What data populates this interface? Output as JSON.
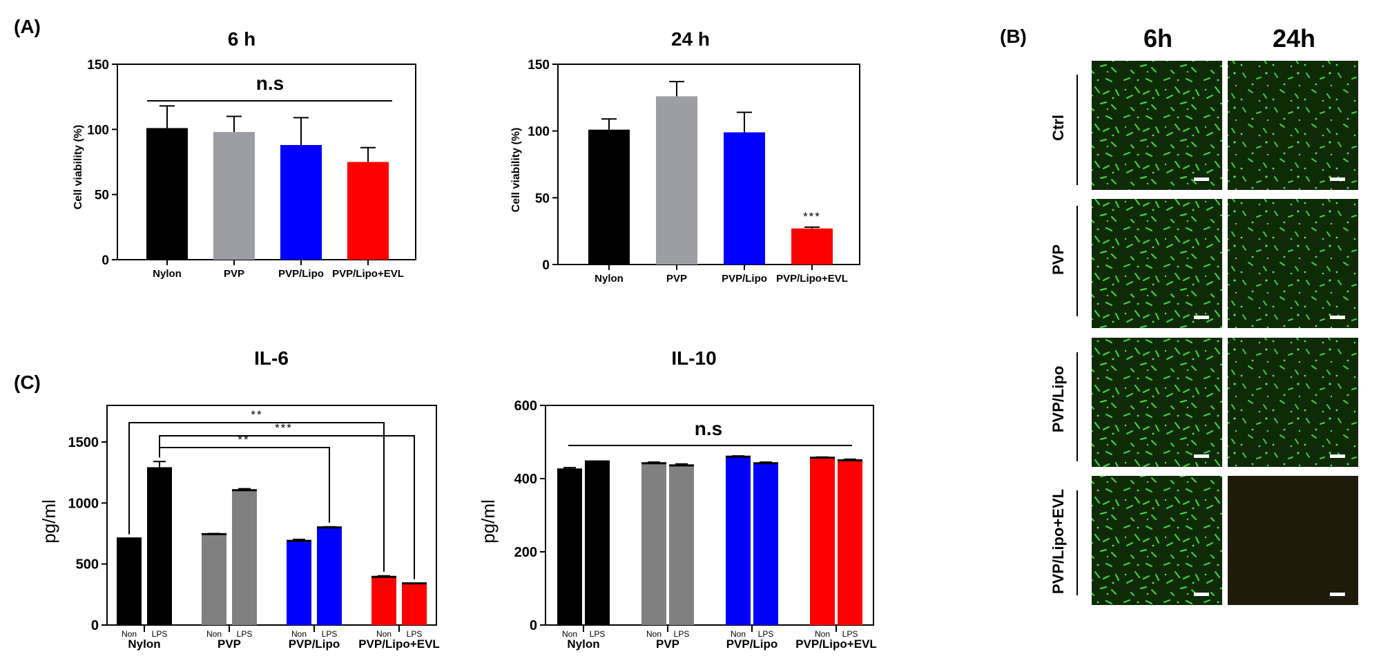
{
  "panels": {
    "A": "(A)",
    "B": "(B)",
    "C": "(C)"
  },
  "colors": {
    "black": "#000000",
    "lightgray": "#9d9ea3",
    "gray": "#808080",
    "blue": "#0000ff",
    "red": "#ff0000",
    "tissue": "#113300",
    "cell": "#39c53a",
    "dark": "#1f1a0a"
  },
  "microscopy": {
    "col_headers": [
      "6h",
      "24h"
    ],
    "rows": [
      "Ctrl",
      "PVP",
      "PVP/Lipo",
      "PVP/Lipo+EVL"
    ]
  },
  "chart_data": [
    {
      "id": "via6",
      "type": "bar",
      "title": "6 h",
      "ylabel": "Cell viability (%)",
      "xlabel": "",
      "ylim": [
        0,
        150
      ],
      "yticks": [
        0,
        50,
        100,
        150
      ],
      "categories": [
        "Nylon",
        "PVP",
        "PVP/Lipo",
        "PVP/Lipo+EVL"
      ],
      "values": [
        101,
        98,
        88,
        75
      ],
      "errors": [
        17,
        12,
        21,
        11
      ],
      "colors": [
        "#000000",
        "#9d9ea3",
        "#0000ff",
        "#ff0000"
      ],
      "annotation": "n.s"
    },
    {
      "id": "via24",
      "type": "bar",
      "title": "24 h",
      "ylabel": "Cell viability (%)",
      "xlabel": "",
      "ylim": [
        0,
        150
      ],
      "yticks": [
        0,
        50,
        100,
        150
      ],
      "categories": [
        "Nylon",
        "PVP",
        "PVP/Lipo",
        "PVP/Lipo+EVL"
      ],
      "values": [
        101,
        126,
        99,
        27
      ],
      "errors": [
        8,
        11,
        15,
        1
      ],
      "colors": [
        "#000000",
        "#9d9ea3",
        "#0000ff",
        "#ff0000"
      ],
      "significance": "***"
    },
    {
      "id": "il6",
      "type": "bar",
      "title": "IL-6",
      "ylabel": "pg/ml",
      "xlabel": "",
      "ylim": [
        0,
        1800
      ],
      "yticks": [
        0,
        500,
        1000,
        1500
      ],
      "categories": [
        "Nylon",
        "PVP",
        "PVP/Lipo",
        "PVP/Lipo+EVL"
      ],
      "subcategories": [
        "Non",
        "LPS"
      ],
      "series": [
        {
          "name": "Non",
          "values": [
            710,
            745,
            690,
            395
          ],
          "errors": [
            0,
            5,
            12,
            8
          ]
        },
        {
          "name": "LPS",
          "values": [
            1285,
            1105,
            800,
            342
          ],
          "errors": [
            55,
            12,
            5,
            0
          ]
        }
      ],
      "colors": [
        "#000000",
        "#808080",
        "#0000ff",
        "#ff0000"
      ],
      "brackets": [
        "**",
        "***",
        "**"
      ]
    },
    {
      "id": "il10",
      "type": "bar",
      "title": "IL-10",
      "ylabel": "pg/ml",
      "xlabel": "",
      "ylim": [
        0,
        600
      ],
      "yticks": [
        0,
        200,
        400,
        600
      ],
      "categories": [
        "Nylon",
        "PVP",
        "PVP/Lipo",
        "PVP/Lipo+EVL"
      ],
      "subcategories": [
        "Non",
        "LPS"
      ],
      "series": [
        {
          "name": "Non",
          "values": [
            425,
            442,
            460,
            457
          ],
          "errors": [
            5,
            3,
            2,
            2
          ]
        },
        {
          "name": "LPS",
          "values": [
            447,
            436,
            442,
            450
          ],
          "errors": [
            0,
            4,
            3,
            3
          ]
        }
      ],
      "colors": [
        "#000000",
        "#808080",
        "#0000ff",
        "#ff0000"
      ],
      "annotation": "n.s"
    }
  ]
}
